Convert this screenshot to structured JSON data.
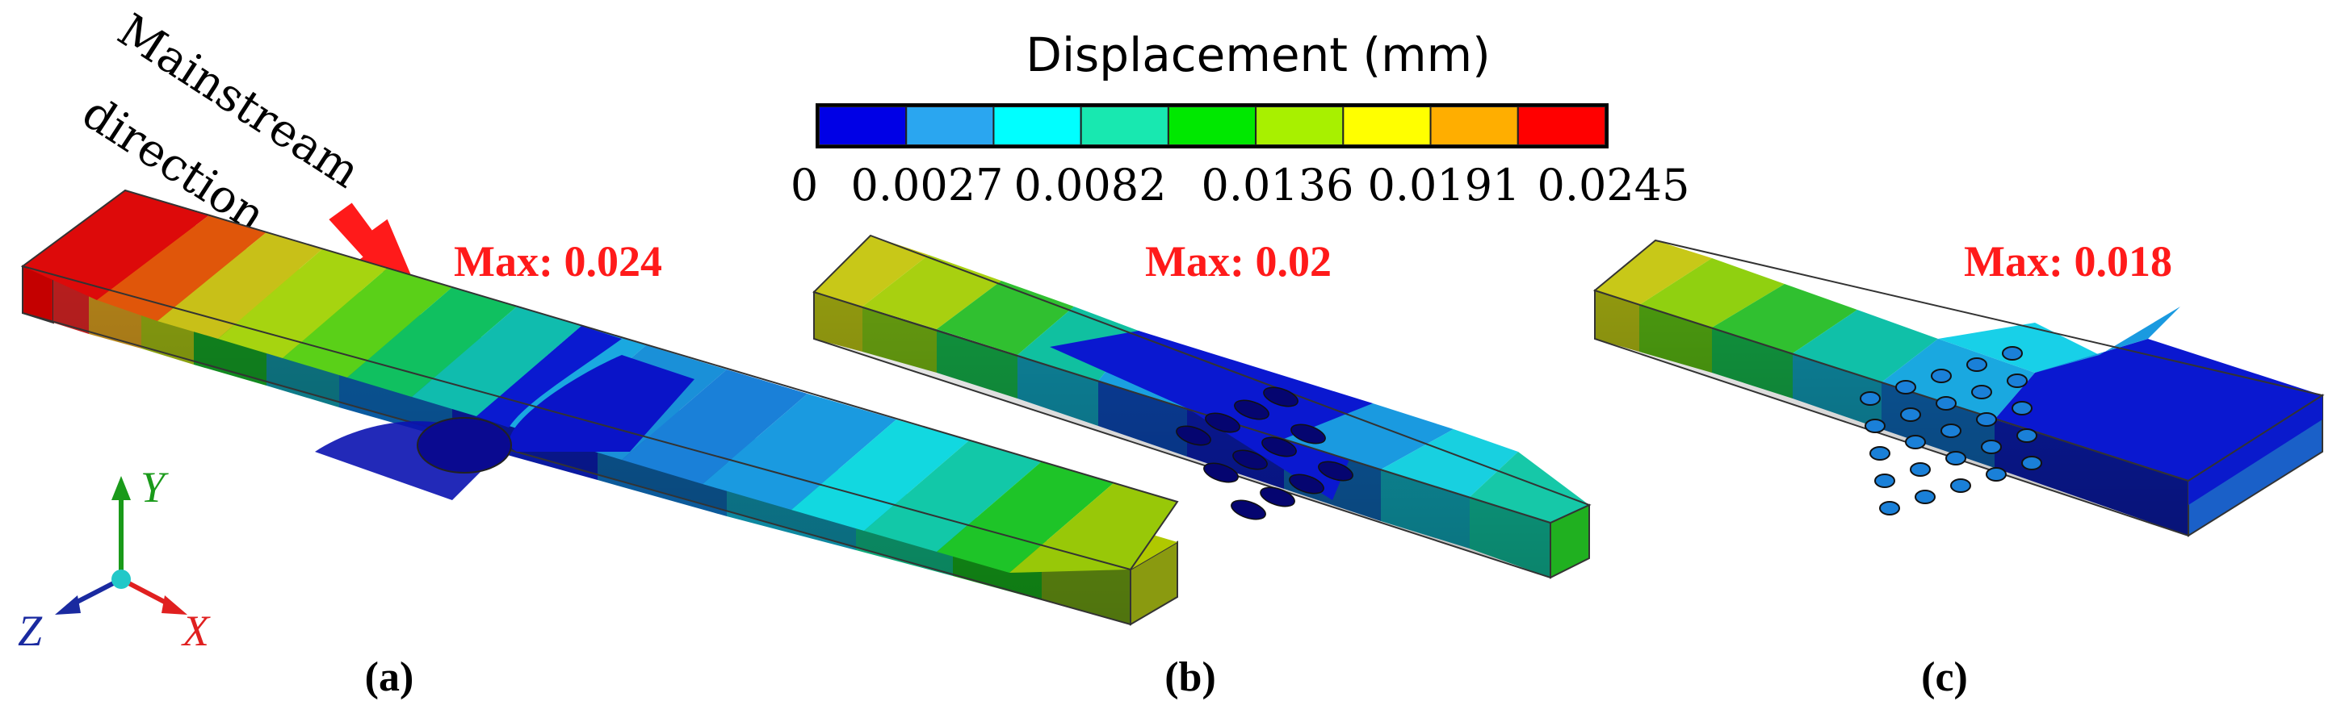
{
  "colorbar": {
    "title": "Displacement (mm)",
    "colors": [
      "#0000e6",
      "#2aa6f0",
      "#00ffff",
      "#18e8b0",
      "#00e800",
      "#a8f000",
      "#ffff00",
      "#ffae00",
      "#ff0000"
    ],
    "ticks": [
      "0",
      "0.0027",
      "0.0082",
      "0.0136",
      "0.0191",
      "0.0245"
    ]
  },
  "annotation": {
    "line1": "Mainstream",
    "line2": "direction",
    "arrow_color": "#ff1a1a"
  },
  "panels": [
    {
      "label": "(a)",
      "max": "Max: 0.024"
    },
    {
      "label": "(b)",
      "max": "Max: 0.02"
    },
    {
      "label": "(c)",
      "max": "Max: 0.018"
    }
  ],
  "axes": {
    "y_label": "Y",
    "x_label": "X",
    "z_label": "Z",
    "y_color": "#1a9a1a",
    "x_color": "#e02020",
    "z_color": "#1a2aa0"
  },
  "max_color": "#ff1a1a"
}
